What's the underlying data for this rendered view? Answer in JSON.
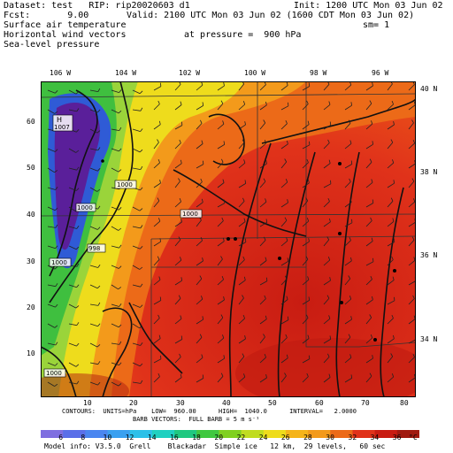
{
  "header": {
    "line1_left": "Dataset: test   RIP: rip20020603 d1",
    "line1_right": "Init: 1200 UTC Mon 03 Jun 02",
    "line2_left": "Fcst:       9.00",
    "line2_right": "Valid: 2100 UTC Mon 03 Jun 02 (1600 CDT Mon 03 Jun 02)",
    "field1": "Surface air temperature",
    "field1_right": "sm= 1",
    "field2": "Horizontal wind vectors",
    "field2_right": "at pressure =  900 hPa",
    "field3": "Sea-level pressure"
  },
  "map": {
    "lon_labels": [
      "106 W",
      "104 W",
      "102 W",
      "100 W",
      "98 W",
      "96 W"
    ],
    "lat_labels": [
      "40 N",
      "38 N",
      "36 N",
      "34 N"
    ],
    "grid_x_labels": [
      "10",
      "20",
      "30",
      "40",
      "50",
      "60",
      "70",
      "80"
    ],
    "grid_y_labels": [
      "60",
      "50",
      "40",
      "30",
      "20",
      "10"
    ],
    "pressure_labels": [
      "1007",
      "1000",
      "1000",
      "1000",
      "998",
      "1000",
      "1000"
    ],
    "pressure_highs": [
      "H"
    ],
    "colors": {
      "purple": "#5a1f9a",
      "blue": "#2f5bd6",
      "green": "#3fbf3f",
      "yellow": "#eedc1c",
      "orange": "#f39a1b",
      "red": "#e0321a",
      "darkred": "#b11c10"
    }
  },
  "footer": {
    "contours": "CONTOURS:  UNITS=hPa    LOW=  960.00      HIGH=  1040.0      INTERVAL=   2.0000",
    "barbs": "BARB VECTORS:  FULL BARB = 5 m s⁻¹",
    "model_info": "Model info: V3.5.0  Grell    Blackadar  Simple ice   12 km,  29 levels,   60 sec"
  },
  "legend": {
    "unit": "°C",
    "labels": [
      "6",
      "8",
      "10",
      "12",
      "14",
      "16",
      "18",
      "20",
      "22",
      "24",
      "26",
      "28",
      "30",
      "32",
      "34",
      "36"
    ],
    "colors": [
      "#7f6fe0",
      "#5a6fe8",
      "#4a86f0",
      "#3aa0f0",
      "#2cc0e8",
      "#20d0c0",
      "#20c880",
      "#40c840",
      "#80d020",
      "#c0dc20",
      "#eedc1c",
      "#f5b41a",
      "#f39a1b",
      "#ec6a18",
      "#e0321a",
      "#c81c12",
      "#a01a10"
    ]
  }
}
